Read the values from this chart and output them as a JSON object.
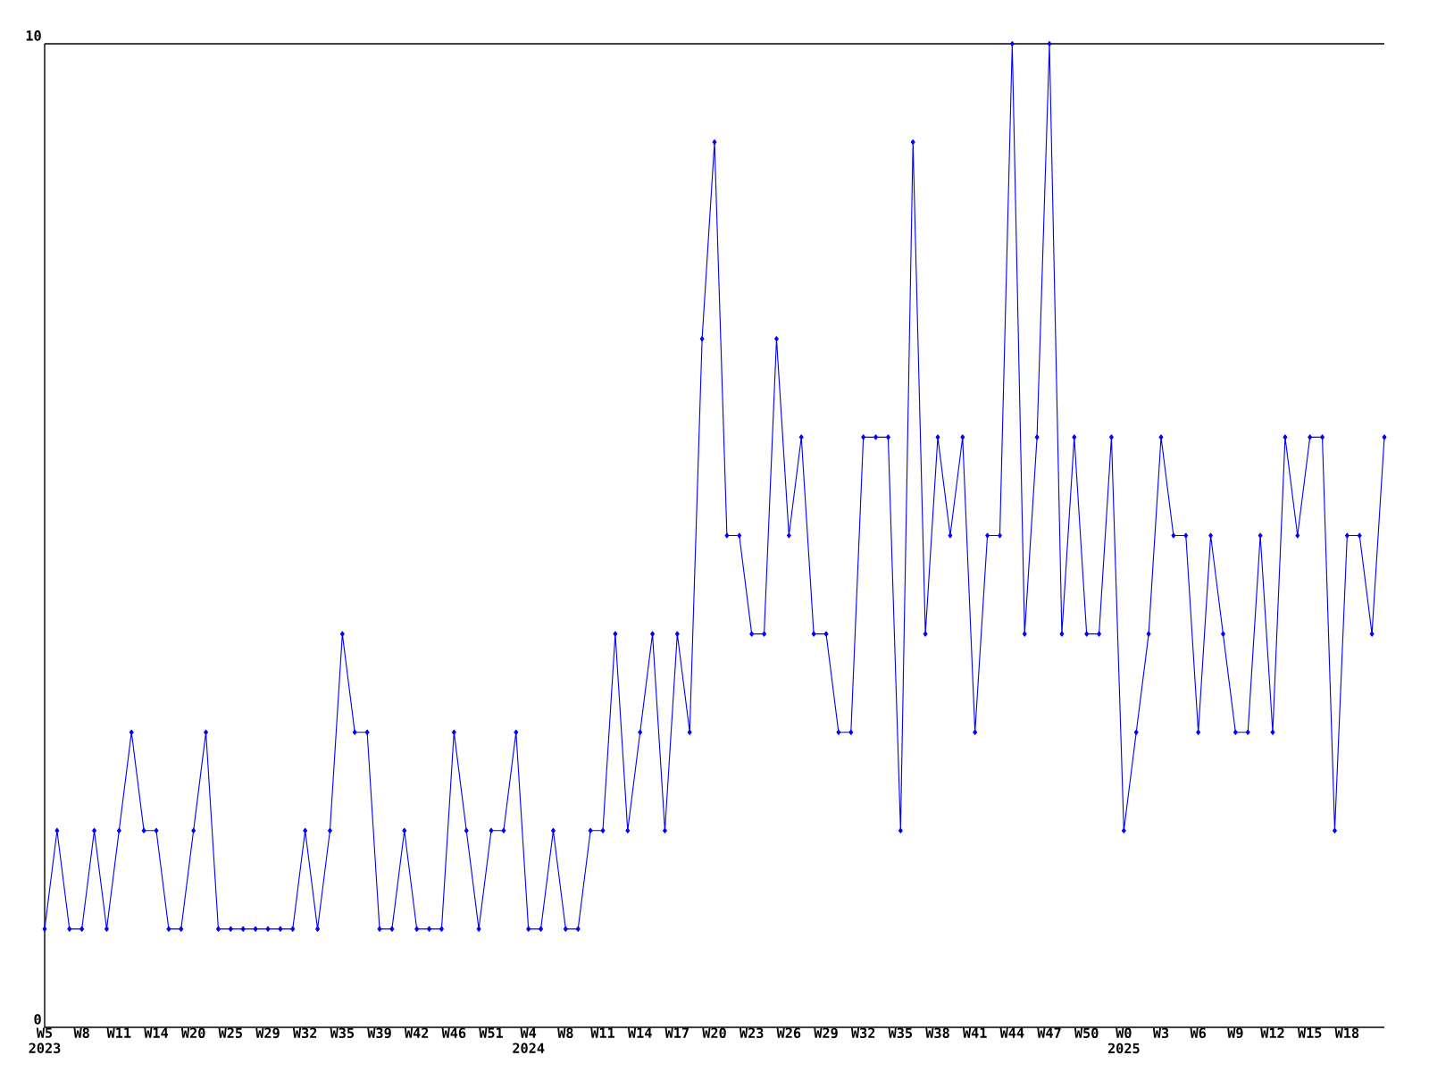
{
  "chart_data": {
    "type": "line",
    "categories": [
      "W5 2023",
      null,
      null,
      "W8",
      null,
      null,
      "W11",
      null,
      null,
      "W14",
      null,
      null,
      "W20",
      null,
      null,
      "W25",
      null,
      null,
      "W29",
      null,
      null,
      "W32",
      null,
      null,
      "W35",
      null,
      null,
      "W39",
      null,
      null,
      "W42",
      null,
      null,
      "W46",
      null,
      null,
      "W51",
      null,
      null,
      "W4 2024",
      null,
      null,
      "W8",
      null,
      null,
      "W11",
      null,
      null,
      "W14",
      null,
      null,
      "W17",
      null,
      null,
      "W20",
      null,
      null,
      "W23",
      null,
      null,
      "W26",
      null,
      null,
      "W29",
      null,
      null,
      "W32",
      null,
      null,
      "W35",
      null,
      null,
      "W38",
      null,
      null,
      "W41",
      null,
      null,
      "W44",
      null,
      null,
      "W47",
      null,
      null,
      "W50",
      null,
      null,
      "W0 2025",
      null,
      null,
      "W3",
      null,
      null,
      "W6",
      null,
      null,
      "W9",
      null,
      null,
      "W12",
      null,
      null,
      "W15",
      null,
      null,
      "W18",
      null,
      null,
      null
    ],
    "values": [
      1,
      2,
      1,
      1,
      2,
      1,
      2,
      3,
      2,
      2,
      1,
      1,
      2,
      3,
      1,
      1,
      1,
      1,
      1,
      1,
      1,
      2,
      1,
      2,
      4,
      3,
      3,
      1,
      1,
      2,
      1,
      1,
      1,
      3,
      2,
      1,
      2,
      2,
      3,
      1,
      1,
      2,
      1,
      1,
      2,
      2,
      4,
      2,
      3,
      4,
      2,
      4,
      3,
      7,
      9,
      5,
      5,
      4,
      4,
      7,
      5,
      6,
      4,
      4,
      3,
      3,
      6,
      6,
      6,
      2,
      9,
      4,
      6,
      5,
      6,
      3,
      5,
      5,
      10,
      4,
      6,
      10,
      4,
      6,
      4,
      4,
      6,
      2,
      3,
      4,
      6,
      5,
      5,
      3,
      5,
      4,
      3,
      3,
      5,
      3,
      6,
      5,
      6,
      6,
      2,
      5,
      5,
      4,
      6
    ],
    "color": "#0000ff",
    "marker": "diamond",
    "ylim": [
      0,
      10
    ],
    "yticks": [
      0,
      10
    ]
  }
}
